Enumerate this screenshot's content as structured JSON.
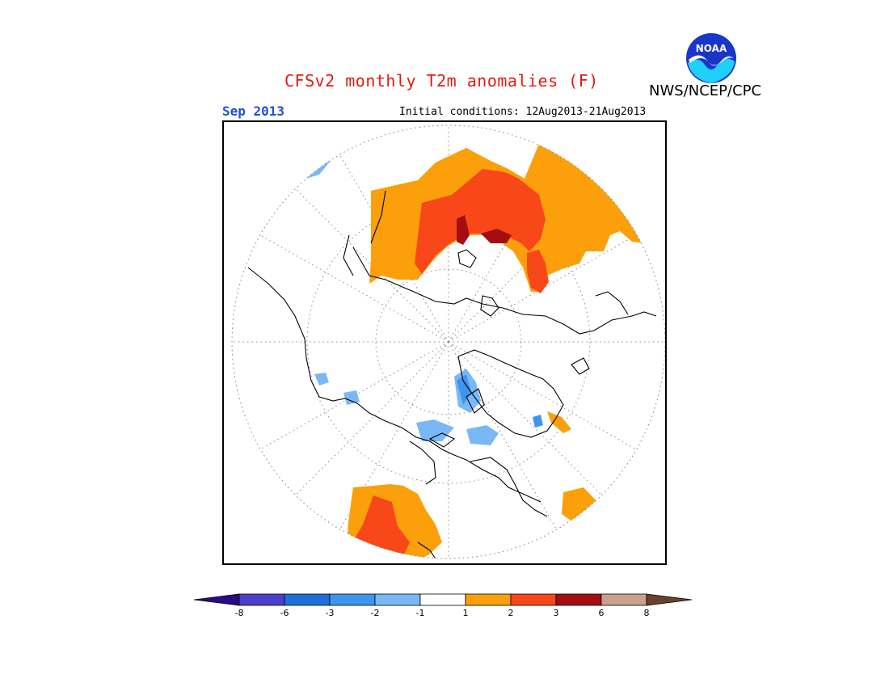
{
  "header": {
    "title": "CFSv2 monthly T2m anomalies (F)",
    "agency": "NWS/NCEP/CPC",
    "period": "Sep 2013",
    "initial_conditions": "Initial conditions: 12Aug2013-21Aug2013",
    "logo_text": "NOAA"
  },
  "legend": {
    "colors": [
      "#2a0a88",
      "#4b3fcc",
      "#1f6fd8",
      "#3e95ee",
      "#7ab8f5",
      "#ffffff",
      "#fb9f0a",
      "#f8481a",
      "#a40e10",
      "#c7a08e",
      "#6a412c"
    ],
    "ticks": [
      "-8",
      "-6",
      "-3",
      "-2",
      "-1",
      "1",
      "2",
      "3",
      "6",
      "8"
    ]
  },
  "map": {
    "projection": "polar-stereographic",
    "hemisphere": "north",
    "colors": {
      "warm1": "#fb9f0a",
      "warm2": "#f8481a",
      "warm3": "#a40e10",
      "cool1": "#7ab8f5",
      "cool2": "#3e95ee",
      "cool3": "#1f6fd8",
      "coast": "#000000",
      "grid": "#888888"
    }
  }
}
